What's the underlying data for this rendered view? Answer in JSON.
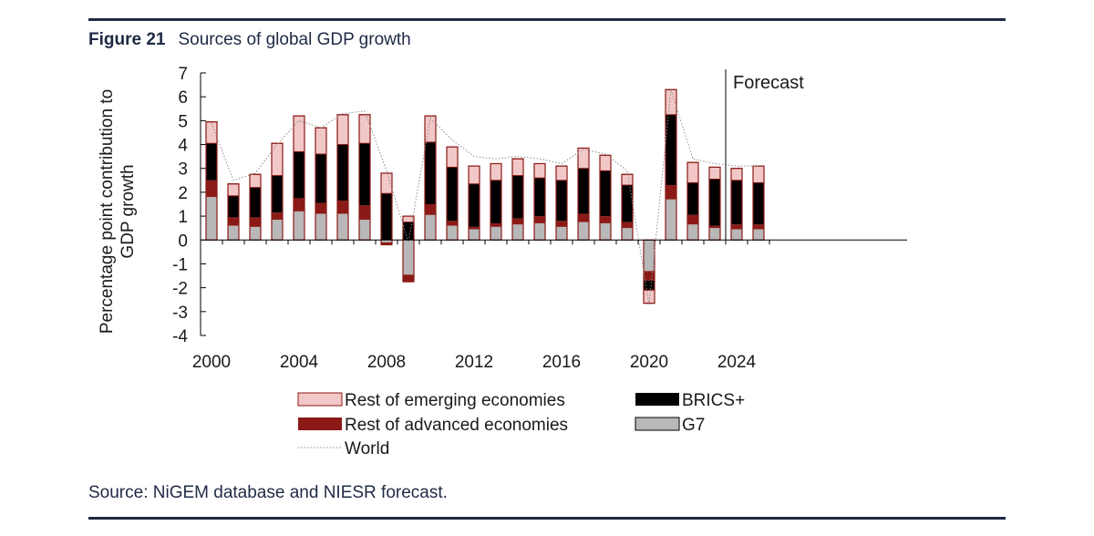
{
  "figure": {
    "number": "Figure 21",
    "title": "Sources of global GDP growth",
    "source": "Source: NiGEM database and NIESR forecast."
  },
  "colors": {
    "rest_emerging": "#f2c7c7",
    "rest_advanced": "#8b1a16",
    "brics": "#000000",
    "g7": "#b8b8b8",
    "world": "#8c8c8c",
    "rule": "#1f2a44"
  },
  "chart_data": {
    "type": "bar",
    "stacked": true,
    "ylabel": "Percentage point contribution to GDP growth",
    "ylabel_lines": [
      "Percentage point contribution to",
      "GDP growth"
    ],
    "ylim": [
      -4,
      7
    ],
    "yticks": [
      -4,
      -3,
      -2,
      -1,
      0,
      1,
      2,
      3,
      4,
      5,
      6,
      7
    ],
    "x": [
      2000,
      2001,
      2002,
      2003,
      2004,
      2005,
      2006,
      2007,
      2008,
      2009,
      2010,
      2011,
      2012,
      2013,
      2014,
      2015,
      2016,
      2017,
      2018,
      2019,
      2020,
      2021,
      2022,
      2023,
      2024,
      2025
    ],
    "xtick_labels": [
      "2000",
      "2004",
      "2008",
      "2012",
      "2016",
      "2020",
      "2024"
    ],
    "annotation": {
      "text": "Forecast",
      "after_year": 2023
    },
    "legend": [
      {
        "key": "rest_emerging",
        "label": "Rest of emerging economies",
        "marker": "box"
      },
      {
        "key": "brics",
        "label": "BRICS+",
        "marker": "box"
      },
      {
        "key": "rest_advanced",
        "label": "Rest of advanced economies",
        "marker": "box"
      },
      {
        "key": "g7",
        "label": "G7",
        "marker": "box"
      },
      {
        "key": "world",
        "label": "World",
        "marker": "line"
      }
    ],
    "series": [
      {
        "key": "g7",
        "name": "G7",
        "values": [
          1.8,
          0.6,
          0.55,
          0.85,
          1.2,
          1.1,
          1.1,
          0.85,
          -0.1,
          -1.45,
          1.05,
          0.6,
          0.45,
          0.55,
          0.65,
          0.7,
          0.55,
          0.75,
          0.7,
          0.5,
          -1.3,
          1.7,
          0.65,
          0.5,
          0.45,
          0.45
        ]
      },
      {
        "key": "rest_advanced",
        "name": "Rest of advanced economies",
        "values": [
          0.7,
          0.35,
          0.4,
          0.3,
          0.55,
          0.45,
          0.55,
          0.6,
          -0.1,
          -0.3,
          0.45,
          0.2,
          0.1,
          0.15,
          0.25,
          0.3,
          0.25,
          0.35,
          0.3,
          0.25,
          -0.4,
          0.6,
          0.4,
          0.1,
          0.2,
          0.2
        ]
      },
      {
        "key": "brics",
        "name": "BRICS+",
        "values": [
          1.55,
          0.9,
          1.25,
          1.55,
          1.95,
          2.05,
          2.35,
          2.6,
          1.95,
          0.75,
          2.6,
          2.25,
          1.8,
          1.8,
          1.8,
          1.6,
          1.7,
          1.9,
          1.9,
          1.55,
          -0.4,
          2.95,
          1.35,
          1.95,
          1.85,
          1.75
        ]
      },
      {
        "key": "rest_emerging",
        "name": "Rest of emerging economies",
        "values": [
          0.9,
          0.5,
          0.55,
          1.35,
          1.5,
          1.1,
          1.25,
          1.2,
          0.85,
          0.25,
          1.1,
          0.85,
          0.75,
          0.7,
          0.7,
          0.6,
          0.6,
          0.85,
          0.65,
          0.45,
          -0.55,
          1.05,
          0.85,
          0.5,
          0.5,
          0.7
        ]
      }
    ],
    "world": [
      4.9,
      2.5,
      2.8,
      4.0,
      5.0,
      4.7,
      5.3,
      5.4,
      2.9,
      -0.1,
      5.1,
      4.2,
      3.5,
      3.4,
      3.5,
      3.4,
      3.2,
      3.8,
      3.6,
      2.9,
      -2.7,
      6.3,
      3.4,
      3.2,
      3.1,
      3.1
    ]
  }
}
